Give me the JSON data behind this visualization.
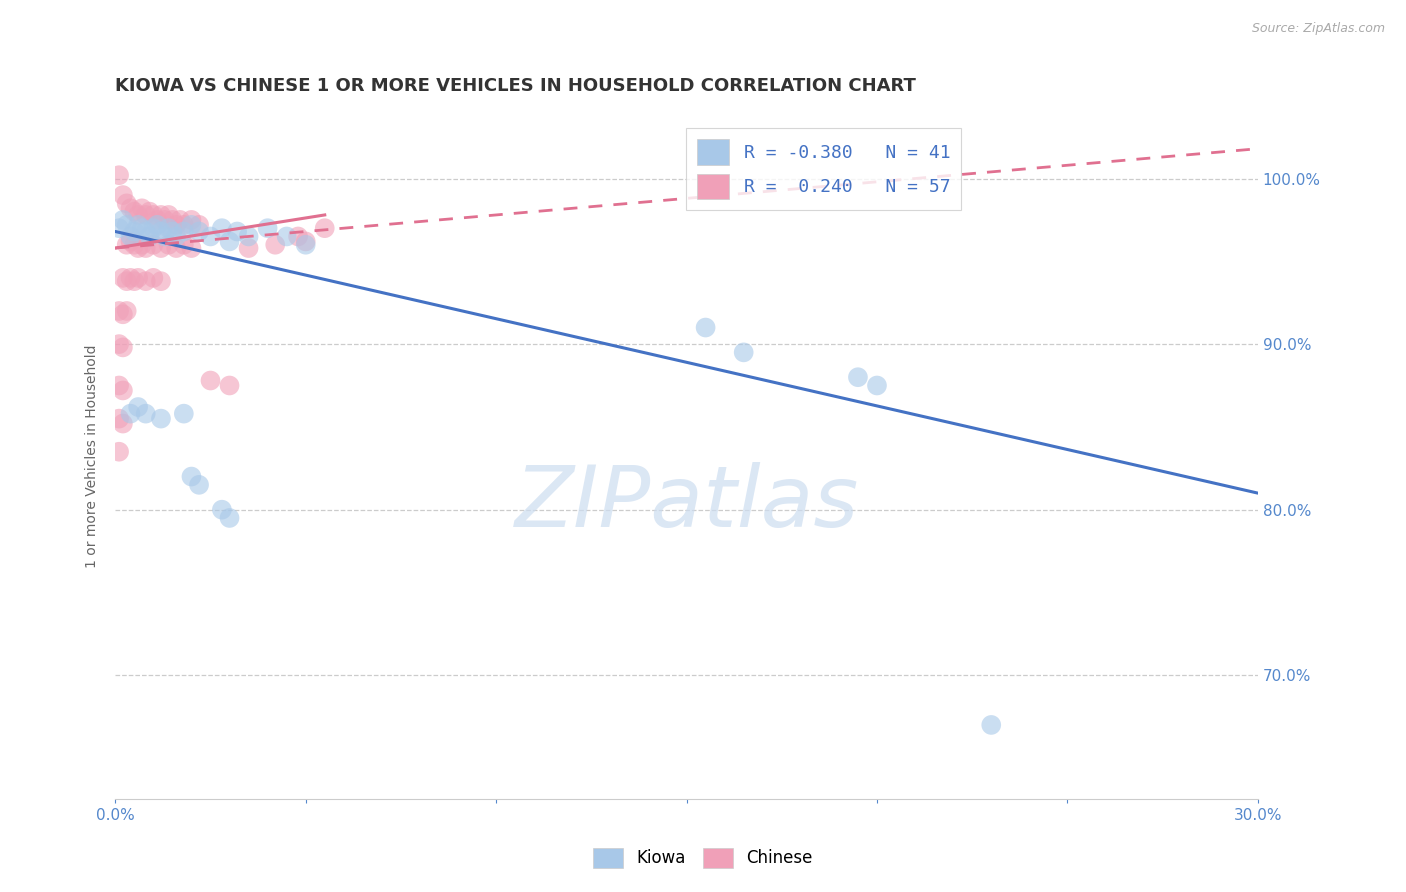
{
  "title": "KIOWA VS CHINESE 1 OR MORE VEHICLES IN HOUSEHOLD CORRELATION CHART",
  "source": "Source: ZipAtlas.com",
  "ylabel": "1 or more Vehicles in Household",
  "ytick_labels": [
    "100.0%",
    "90.0%",
    "80.0%",
    "70.0%"
  ],
  "ytick_values": [
    1.0,
    0.9,
    0.8,
    0.7
  ],
  "xlim": [
    0.0,
    0.3
  ],
  "ylim": [
    0.625,
    1.04
  ],
  "watermark": "ZIPatlas",
  "kiowa_color": "#a8c8e8",
  "chinese_color": "#f0a0b8",
  "trend_kiowa_color": "#4472c4",
  "trend_chinese_color": "#e07090",
  "kiowa_trend_x0": 0.0,
  "kiowa_trend_y0": 0.968,
  "kiowa_trend_x1": 0.3,
  "kiowa_trend_y1": 0.81,
  "chinese_trend_x0": 0.0,
  "chinese_trend_y0": 0.958,
  "chinese_trend_x1": 0.055,
  "chinese_trend_y1": 0.978,
  "chinese_trend_dash_x0": 0.0,
  "chinese_trend_dash_y0": 0.958,
  "chinese_trend_dash_x1": 0.3,
  "chinese_trend_dash_y1": 1.018,
  "kiowa_points": [
    [
      0.001,
      0.97
    ],
    [
      0.002,
      0.975
    ],
    [
      0.003,
      0.972
    ],
    [
      0.004,
      0.965
    ],
    [
      0.005,
      0.968
    ],
    [
      0.006,
      0.972
    ],
    [
      0.007,
      0.97
    ],
    [
      0.008,
      0.968
    ],
    [
      0.009,
      0.965
    ],
    [
      0.01,
      0.97
    ],
    [
      0.011,
      0.972
    ],
    [
      0.012,
      0.968
    ],
    [
      0.013,
      0.965
    ],
    [
      0.014,
      0.97
    ],
    [
      0.015,
      0.968
    ],
    [
      0.016,
      0.965
    ],
    [
      0.018,
      0.968
    ],
    [
      0.02,
      0.972
    ],
    [
      0.022,
      0.968
    ],
    [
      0.025,
      0.965
    ],
    [
      0.028,
      0.97
    ],
    [
      0.03,
      0.962
    ],
    [
      0.032,
      0.968
    ],
    [
      0.035,
      0.965
    ],
    [
      0.04,
      0.97
    ],
    [
      0.045,
      0.965
    ],
    [
      0.05,
      0.96
    ],
    [
      0.004,
      0.858
    ],
    [
      0.006,
      0.862
    ],
    [
      0.008,
      0.858
    ],
    [
      0.012,
      0.855
    ],
    [
      0.018,
      0.858
    ],
    [
      0.02,
      0.82
    ],
    [
      0.022,
      0.815
    ],
    [
      0.028,
      0.8
    ],
    [
      0.03,
      0.795
    ],
    [
      0.155,
      0.91
    ],
    [
      0.165,
      0.895
    ],
    [
      0.195,
      0.88
    ],
    [
      0.2,
      0.875
    ],
    [
      0.23,
      0.67
    ]
  ],
  "chinese_points": [
    [
      0.001,
      1.002
    ],
    [
      0.002,
      0.99
    ],
    [
      0.003,
      0.985
    ],
    [
      0.004,
      0.982
    ],
    [
      0.005,
      0.98
    ],
    [
      0.006,
      0.978
    ],
    [
      0.007,
      0.982
    ],
    [
      0.008,
      0.978
    ],
    [
      0.009,
      0.98
    ],
    [
      0.01,
      0.978
    ],
    [
      0.011,
      0.975
    ],
    [
      0.012,
      0.978
    ],
    [
      0.013,
      0.975
    ],
    [
      0.014,
      0.978
    ],
    [
      0.015,
      0.975
    ],
    [
      0.016,
      0.972
    ],
    [
      0.017,
      0.975
    ],
    [
      0.018,
      0.972
    ],
    [
      0.02,
      0.975
    ],
    [
      0.022,
      0.972
    ],
    [
      0.003,
      0.96
    ],
    [
      0.004,
      0.962
    ],
    [
      0.005,
      0.96
    ],
    [
      0.006,
      0.958
    ],
    [
      0.007,
      0.96
    ],
    [
      0.008,
      0.958
    ],
    [
      0.01,
      0.96
    ],
    [
      0.012,
      0.958
    ],
    [
      0.014,
      0.96
    ],
    [
      0.016,
      0.958
    ],
    [
      0.018,
      0.96
    ],
    [
      0.02,
      0.958
    ],
    [
      0.002,
      0.94
    ],
    [
      0.003,
      0.938
    ],
    [
      0.004,
      0.94
    ],
    [
      0.005,
      0.938
    ],
    [
      0.006,
      0.94
    ],
    [
      0.008,
      0.938
    ],
    [
      0.01,
      0.94
    ],
    [
      0.012,
      0.938
    ],
    [
      0.001,
      0.92
    ],
    [
      0.002,
      0.918
    ],
    [
      0.003,
      0.92
    ],
    [
      0.001,
      0.9
    ],
    [
      0.002,
      0.898
    ],
    [
      0.001,
      0.875
    ],
    [
      0.002,
      0.872
    ],
    [
      0.001,
      0.855
    ],
    [
      0.002,
      0.852
    ],
    [
      0.001,
      0.835
    ],
    [
      0.025,
      0.878
    ],
    [
      0.03,
      0.875
    ],
    [
      0.035,
      0.958
    ],
    [
      0.042,
      0.96
    ],
    [
      0.048,
      0.965
    ],
    [
      0.05,
      0.962
    ],
    [
      0.055,
      0.97
    ]
  ]
}
